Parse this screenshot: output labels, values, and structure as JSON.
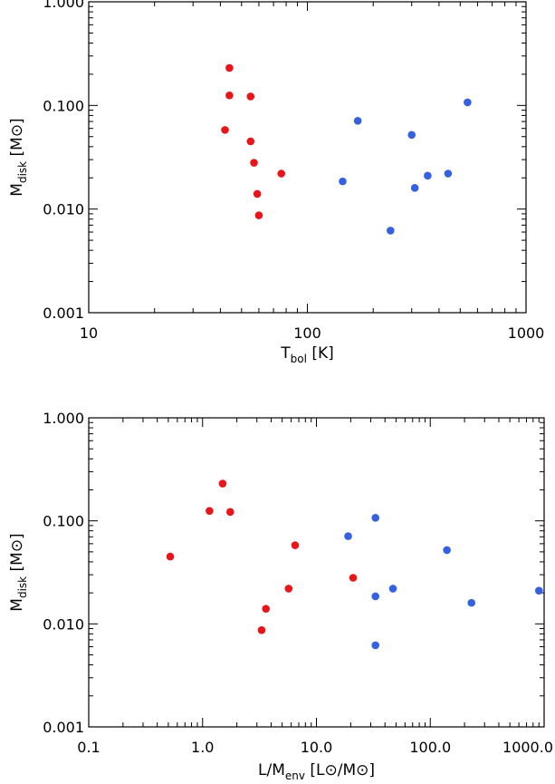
{
  "chart_data": [
    {
      "type": "scatter",
      "xscale": "log",
      "yscale": "log",
      "xlim": [
        10,
        1000
      ],
      "ylim": [
        0.001,
        1.0
      ],
      "xticks": [
        "10",
        "100",
        "1000"
      ],
      "yticks": [
        "0.001",
        "0.010",
        "0.100",
        "1.000"
      ],
      "xlabel": {
        "main": "T",
        "sub": "bol",
        "unit": " [K]"
      },
      "ylabel": {
        "main": "M",
        "sub": "disk",
        "unit": " [M⊙]"
      },
      "series": [
        {
          "color": "#e8151a",
          "points": [
            {
              "x": 44,
              "y": 0.23
            },
            {
              "x": 44,
              "y": 0.125
            },
            {
              "x": 55,
              "y": 0.122
            },
            {
              "x": 42,
              "y": 0.058
            },
            {
              "x": 55,
              "y": 0.045
            },
            {
              "x": 57,
              "y": 0.028
            },
            {
              "x": 76,
              "y": 0.022
            },
            {
              "x": 59,
              "y": 0.014
            },
            {
              "x": 60,
              "y": 0.0087
            }
          ]
        },
        {
          "color": "#3560e0",
          "points": [
            {
              "x": 540,
              "y": 0.107
            },
            {
              "x": 170,
              "y": 0.071
            },
            {
              "x": 300,
              "y": 0.052
            },
            {
              "x": 355,
              "y": 0.021
            },
            {
              "x": 440,
              "y": 0.022
            },
            {
              "x": 145,
              "y": 0.0185
            },
            {
              "x": 310,
              "y": 0.016
            },
            {
              "x": 240,
              "y": 0.0062
            }
          ]
        }
      ]
    },
    {
      "type": "scatter",
      "xscale": "log",
      "yscale": "log",
      "xlim": [
        0.1,
        1000
      ],
      "ylim": [
        0.001,
        1.0
      ],
      "xticks": [
        "0.1",
        "1.0",
        "10.0",
        "100.0",
        "1000.0"
      ],
      "yticks": [
        "0.001",
        "0.010",
        "0.100",
        "1.000"
      ],
      "xlabel": {
        "main": "L/M",
        "sub": "env",
        "unit": " [L⊙/M⊙]"
      },
      "ylabel": {
        "main": "M",
        "sub": "disk",
        "unit": " [M⊙]"
      },
      "series": [
        {
          "color": "#e8151a",
          "points": [
            {
              "x": 1.5,
              "y": 0.23
            },
            {
              "x": 1.15,
              "y": 0.125
            },
            {
              "x": 1.75,
              "y": 0.122
            },
            {
              "x": 0.52,
              "y": 0.045
            },
            {
              "x": 6.5,
              "y": 0.058
            },
            {
              "x": 21,
              "y": 0.028
            },
            {
              "x": 5.7,
              "y": 0.022
            },
            {
              "x": 3.6,
              "y": 0.014
            },
            {
              "x": 3.3,
              "y": 0.0087
            }
          ]
        },
        {
          "color": "#3560e0",
          "points": [
            {
              "x": 33,
              "y": 0.107
            },
            {
              "x": 19,
              "y": 0.071
            },
            {
              "x": 140,
              "y": 0.052
            },
            {
              "x": 47,
              "y": 0.022
            },
            {
              "x": 33,
              "y": 0.0185
            },
            {
              "x": 230,
              "y": 0.016
            },
            {
              "x": 900,
              "y": 0.021
            },
            {
              "x": 33,
              "y": 0.0062
            }
          ]
        }
      ]
    }
  ]
}
